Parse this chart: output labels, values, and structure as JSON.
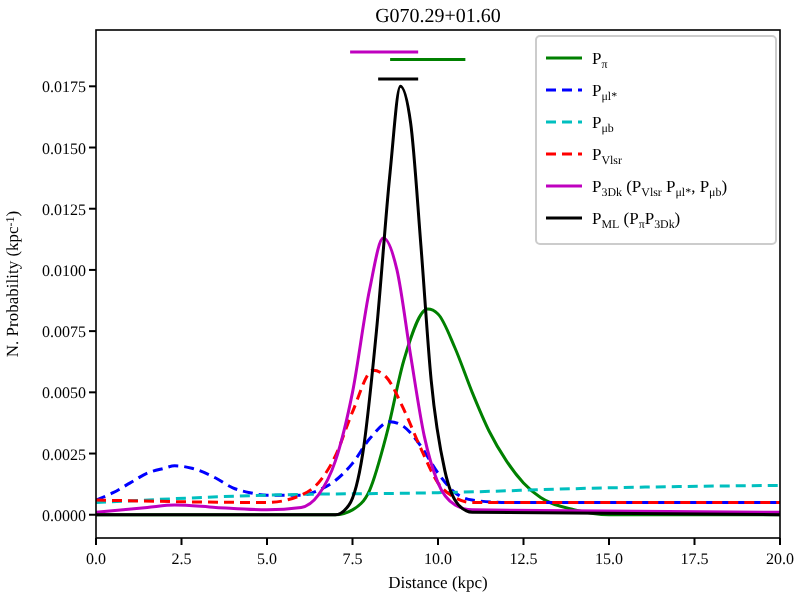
{
  "chart_data": {
    "type": "line",
    "title": "G070.29+01.60",
    "xlabel": "Distance (kpc)",
    "ylabel": "N. Probability (kpc$^{-1}$)",
    "xlim": [
      0,
      20
    ],
    "ylim": [
      -0.00095,
      0.0198
    ],
    "xticks": [
      {
        "value": 0,
        "label": "0.0"
      },
      {
        "value": 2.5,
        "label": "2.5"
      },
      {
        "value": 5,
        "label": "5.0"
      },
      {
        "value": 7.5,
        "label": "7.5"
      },
      {
        "value": 10,
        "label": "10.0"
      },
      {
        "value": 12.5,
        "label": "12.5"
      },
      {
        "value": 15,
        "label": "15.0"
      },
      {
        "value": 17.5,
        "label": "17.5"
      },
      {
        "value": 20,
        "label": "20.0"
      }
    ],
    "yticks": [
      {
        "value": 0,
        "label": "0.0000"
      },
      {
        "value": 0.0025,
        "label": "0.0025"
      },
      {
        "value": 0.005,
        "label": "0.0050"
      },
      {
        "value": 0.0075,
        "label": "0.0075"
      },
      {
        "value": 0.01,
        "label": "0.0100"
      },
      {
        "value": 0.0125,
        "label": "0.0125"
      },
      {
        "value": 0.015,
        "label": "0.0150"
      },
      {
        "value": 0.0175,
        "label": "0.0175"
      }
    ],
    "grid": false,
    "legend": "top right",
    "marker": "none",
    "series": [
      {
        "name": "P$_{π}$",
        "color": "#008000",
        "line_style": "solid",
        "x": [
          0,
          7,
          7.5,
          8,
          8.5,
          9,
          9.7,
          10,
          10.5,
          11,
          11.5,
          12,
          12.5,
          13,
          14,
          15,
          20
        ],
        "values": [
          0,
          0,
          0.0002,
          0.001,
          0.0033,
          0.0063,
          0.0084,
          0.0082,
          0.0068,
          0.005,
          0.0034,
          0.0022,
          0.0013,
          0.0007,
          0.0002,
          0,
          0
        ]
      },
      {
        "name": "P$_{μl*}$",
        "color": "#0000ff",
        "line_style": "dashed",
        "x": [
          0,
          0.5,
          1,
          1.5,
          2,
          2.3,
          2.8,
          3.5,
          4,
          4.5,
          5,
          6,
          6.5,
          7,
          7.5,
          8,
          8.6,
          9,
          9.5,
          10,
          10.5,
          11,
          12,
          20
        ],
        "values": [
          0.0006,
          0.0009,
          0.0013,
          0.0017,
          0.0019,
          0.002,
          0.0019,
          0.0015,
          0.0011,
          0.0009,
          0.0008,
          0.0008,
          0.001,
          0.0014,
          0.0021,
          0.0031,
          0.0038,
          0.0036,
          0.0028,
          0.0017,
          0.0009,
          0.0006,
          0.0005,
          0.0005
        ]
      },
      {
        "name": "P$_{μb}$",
        "color": "#00bfbf",
        "line_style": "dashed",
        "x": [
          0,
          5,
          10,
          15,
          20
        ],
        "values": [
          0.0005,
          0.0008,
          0.0009,
          0.0011,
          0.0012
        ]
      },
      {
        "name": "P$_{Vlsr}$",
        "color": "#ff0000",
        "line_style": "dashed",
        "x": [
          0,
          5,
          6,
          6.5,
          7,
          7.5,
          8.1,
          8.5,
          9,
          9.5,
          10,
          10.5,
          11,
          20
        ],
        "values": [
          0.0006,
          0.0005,
          0.0008,
          0.0013,
          0.0024,
          0.0042,
          0.0059,
          0.0056,
          0.0043,
          0.0027,
          0.0013,
          0.0007,
          0.0005,
          0.0005
        ]
      },
      {
        "name": "P$_{3Dk}$ (P$_{Vlsr}$ P$_{μl*}$, P$_{μb}$)",
        "color": "#bf00bf",
        "line_style": "solid",
        "x": [
          0,
          1.5,
          2.3,
          3.5,
          5,
          6,
          6.5,
          7,
          7.5,
          8,
          8.4,
          8.8,
          9.2,
          9.6,
          10,
          10.5,
          11,
          20
        ],
        "values": [
          0.0001,
          0.0003,
          0.0004,
          0.0003,
          0.0002,
          0.0003,
          0.0008,
          0.0022,
          0.005,
          0.0092,
          0.0113,
          0.01,
          0.0065,
          0.0032,
          0.0013,
          0.0004,
          0.0002,
          0.0001
        ]
      },
      {
        "name": "P$_{ML}$ (P$_{π}$P$_{3Dk}$)",
        "color": "#000000",
        "line_style": "solid",
        "x": [
          0,
          7,
          7.4,
          7.8,
          8.2,
          8.6,
          8.9,
          9.2,
          9.5,
          9.8,
          10.2,
          10.6,
          11,
          20
        ],
        "values": [
          0,
          0,
          0.0004,
          0.0025,
          0.0075,
          0.014,
          0.0175,
          0.016,
          0.011,
          0.0055,
          0.0018,
          0.0004,
          0.0001,
          0
        ]
      },
      {
        "color": "#bf00bf",
        "line_style": "solid",
        "x": [
          7.43,
          9.42
        ],
        "values": [
          0.0189,
          0.0189
        ]
      },
      {
        "color": "#008000",
        "line_style": "solid",
        "x": [
          8.6,
          10.8
        ],
        "values": [
          0.0186,
          0.0186
        ]
      },
      {
        "color": "#000000",
        "line_style": "solid",
        "x": [
          8.25,
          9.42
        ],
        "values": [
          0.0178,
          0.0178
        ]
      }
    ]
  }
}
